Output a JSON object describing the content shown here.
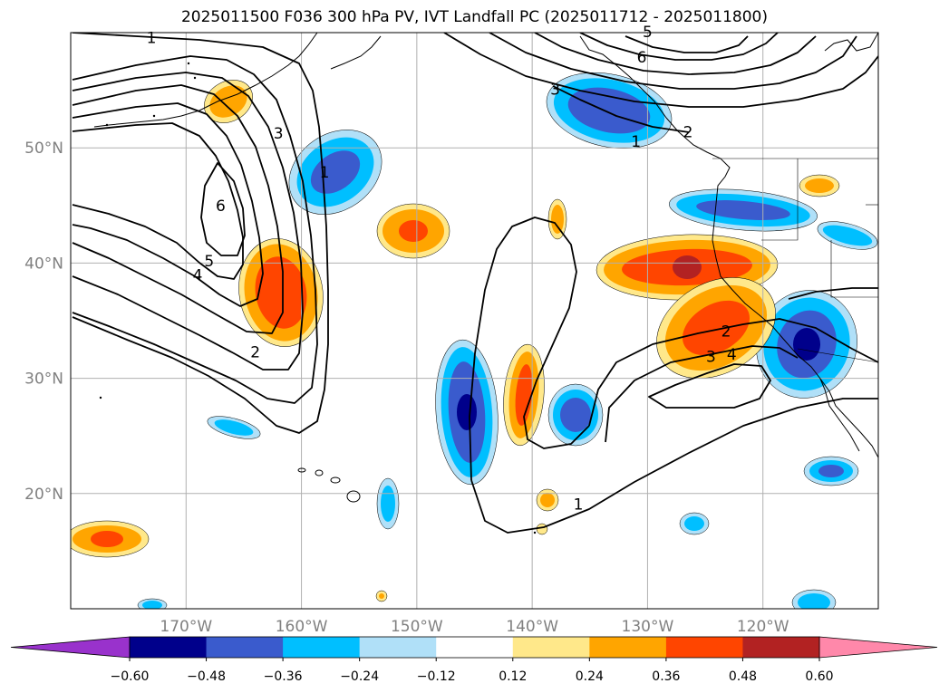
{
  "title": "2025011500 F036 300 hPa PV, IVT Landfall PC (2025011712 - 2025011800)",
  "chart_data": {
    "type": "filled-contour map",
    "title": "2025011500 F036 300 hPa PV, IVT Landfall PC (2025011712 - 2025011800)",
    "lon_range": [
      -180,
      -110
    ],
    "lat_range": [
      10,
      60
    ],
    "lon_ticks": [
      -170,
      -160,
      -150,
      -140,
      -130,
      -120
    ],
    "lon_tick_labels": [
      "170°W",
      "160°W",
      "150°W",
      "140°W",
      "130°W",
      "120°W"
    ],
    "lat_ticks": [
      20,
      30,
      40,
      50
    ],
    "lat_tick_labels": [
      "20°N",
      "30°N",
      "40°N",
      "50°N"
    ],
    "grid": true,
    "colorbar": {
      "levels": [
        -0.6,
        -0.48,
        -0.36,
        -0.24,
        -0.12,
        0.12,
        0.24,
        0.36,
        0.48,
        0.6
      ],
      "tick_labels": [
        "−0.60",
        "−0.48",
        "−0.36",
        "−0.24",
        "−0.12",
        "0.12",
        "0.24",
        "0.36",
        "0.48",
        "0.60"
      ],
      "colors": [
        "#9932cc",
        "#00008b",
        "#3a5bcd",
        "#00bfff",
        "#b0e0f8",
        "#ffffff",
        "#ffe88a",
        "#ffa500",
        "#ff4500",
        "#b22222",
        "#ff88aa"
      ],
      "extend": "both"
    },
    "contour_levels": [
      1,
      2,
      3,
      4,
      5,
      6
    ],
    "contour_labels": [
      {
        "text": "1",
        "lon": -173.0,
        "lat": 59.5
      },
      {
        "text": "3",
        "lon": -162.0,
        "lat": 51.2
      },
      {
        "text": "1",
        "lon": -158.0,
        "lat": 47.8
      },
      {
        "text": "6",
        "lon": -167.0,
        "lat": 44.9
      },
      {
        "text": "5",
        "lon": -168.0,
        "lat": 40.1
      },
      {
        "text": "4",
        "lon": -169.0,
        "lat": 38.9
      },
      {
        "text": "2",
        "lon": -164.0,
        "lat": 32.2
      },
      {
        "text": "5",
        "lon": -130.0,
        "lat": 60.0
      },
      {
        "text": "6",
        "lon": -130.5,
        "lat": 57.8
      },
      {
        "text": "3",
        "lon": -138.0,
        "lat": 55.0
      },
      {
        "text": "1",
        "lon": -131.0,
        "lat": 50.5
      },
      {
        "text": "2",
        "lon": -126.5,
        "lat": 51.3
      },
      {
        "text": "2",
        "lon": -123.2,
        "lat": 34.0
      },
      {
        "text": "3",
        "lon": -124.5,
        "lat": 31.8
      },
      {
        "text": "4",
        "lon": -122.7,
        "lat": 32.0
      },
      {
        "text": "1",
        "lon": -136.0,
        "lat": 19.0
      }
    ]
  }
}
